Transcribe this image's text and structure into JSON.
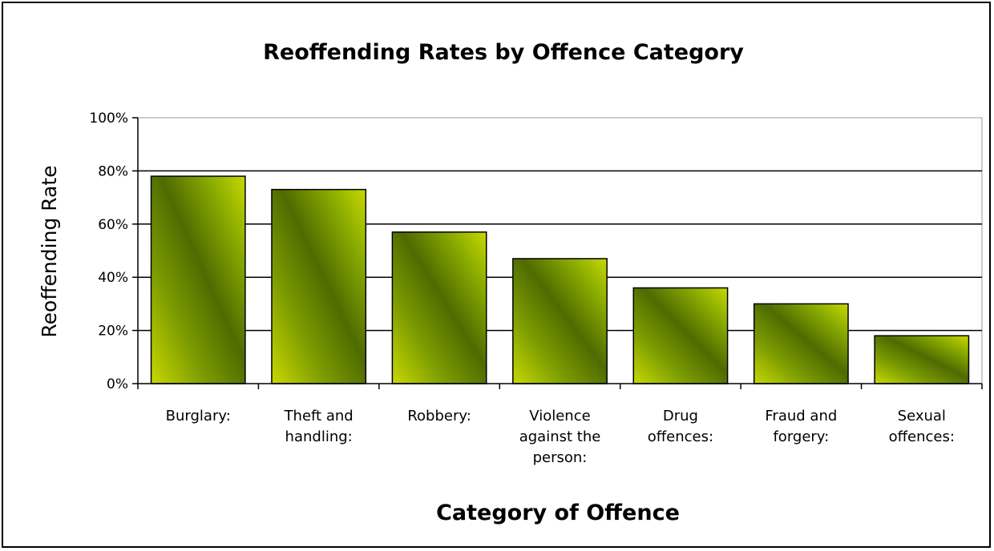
{
  "chart_data": {
    "type": "bar",
    "title": "Reoffending Rates by Offence Category",
    "xlabel": "Category of Offence",
    "ylabel": "Reoffending Rate",
    "ylim": [
      0,
      100
    ],
    "y_ticks": [
      "0%",
      "20%",
      "40%",
      "60%",
      "80%",
      "100%"
    ],
    "y_tick_values": [
      0,
      20,
      40,
      60,
      80,
      100
    ],
    "grid": true,
    "legend": "none",
    "categories": [
      [
        "Burglary:"
      ],
      [
        "Theft and",
        "handling:"
      ],
      [
        "Robbery:"
      ],
      [
        "Violence",
        "against the",
        "person:"
      ],
      [
        "Drug",
        "offences:"
      ],
      [
        "Fraud and",
        "forgery:"
      ],
      [
        "Sexual",
        "offences:"
      ]
    ],
    "values": [
      78,
      73,
      57,
      47,
      36,
      30,
      18
    ],
    "colors": {
      "bar_light": "#c8d900",
      "bar_dark": "#4f6b00",
      "bar_stroke": "#000000",
      "gridline": "#000000",
      "plot_border": "#999999"
    }
  }
}
